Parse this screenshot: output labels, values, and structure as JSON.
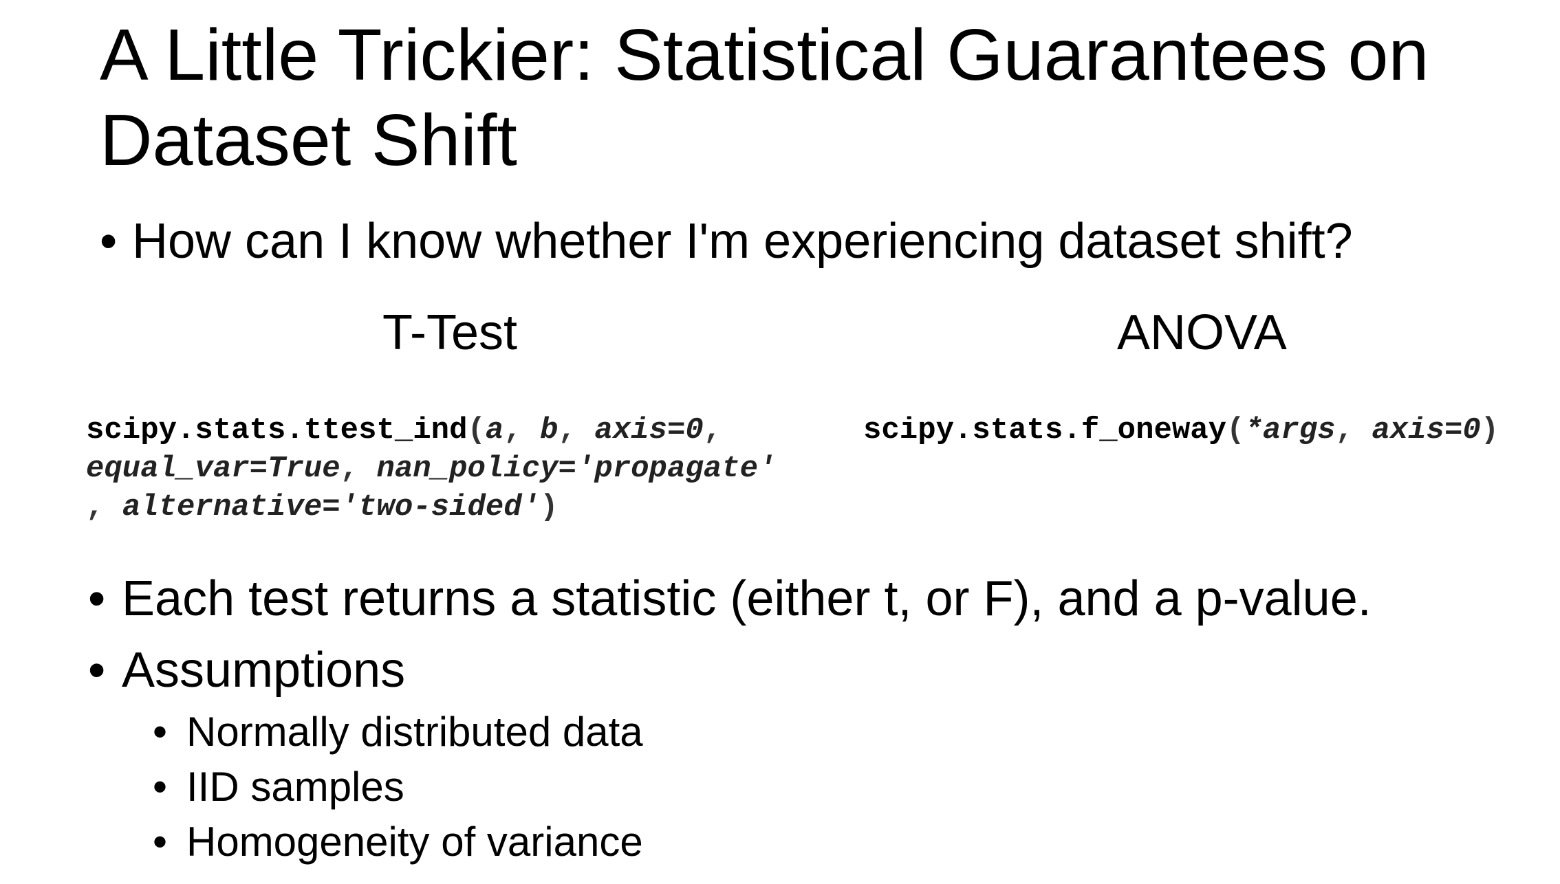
{
  "title": "A Little Trickier: Statistical Guarantees on Dataset Shift",
  "bullet_char": "•",
  "intro_bullet": "How can I know whether I'm experiencing dataset shift?",
  "columns": {
    "left_heading": "T-Test",
    "right_heading": "ANOVA"
  },
  "code": {
    "ttest": {
      "func": "scipy.stats.ttest_ind",
      "open": "(",
      "arg_a": "a",
      "sep1": ", ",
      "arg_b": "b",
      "sep2": ", ",
      "arg_axis": "axis=0",
      "sep3": ",",
      "arg_equal_var": "equal_var=True",
      "sep4": ", ",
      "arg_nan_policy": "nan_policy='propagate'",
      "sep5": ", ",
      "arg_alternative": "alternative='two-sided'",
      "close": ")"
    },
    "anova": {
      "func": "scipy.stats.f_oneway",
      "open": "(",
      "arg_args": "*args",
      "sep1": ", ",
      "arg_axis": "axis=0",
      "close": ")"
    }
  },
  "bullets": [
    "Each test returns a statistic (either t, or F), and a p-value.",
    "Assumptions"
  ],
  "assumptions": [
    "Normally distributed data",
    "IID samples",
    "Homogeneity of variance"
  ]
}
